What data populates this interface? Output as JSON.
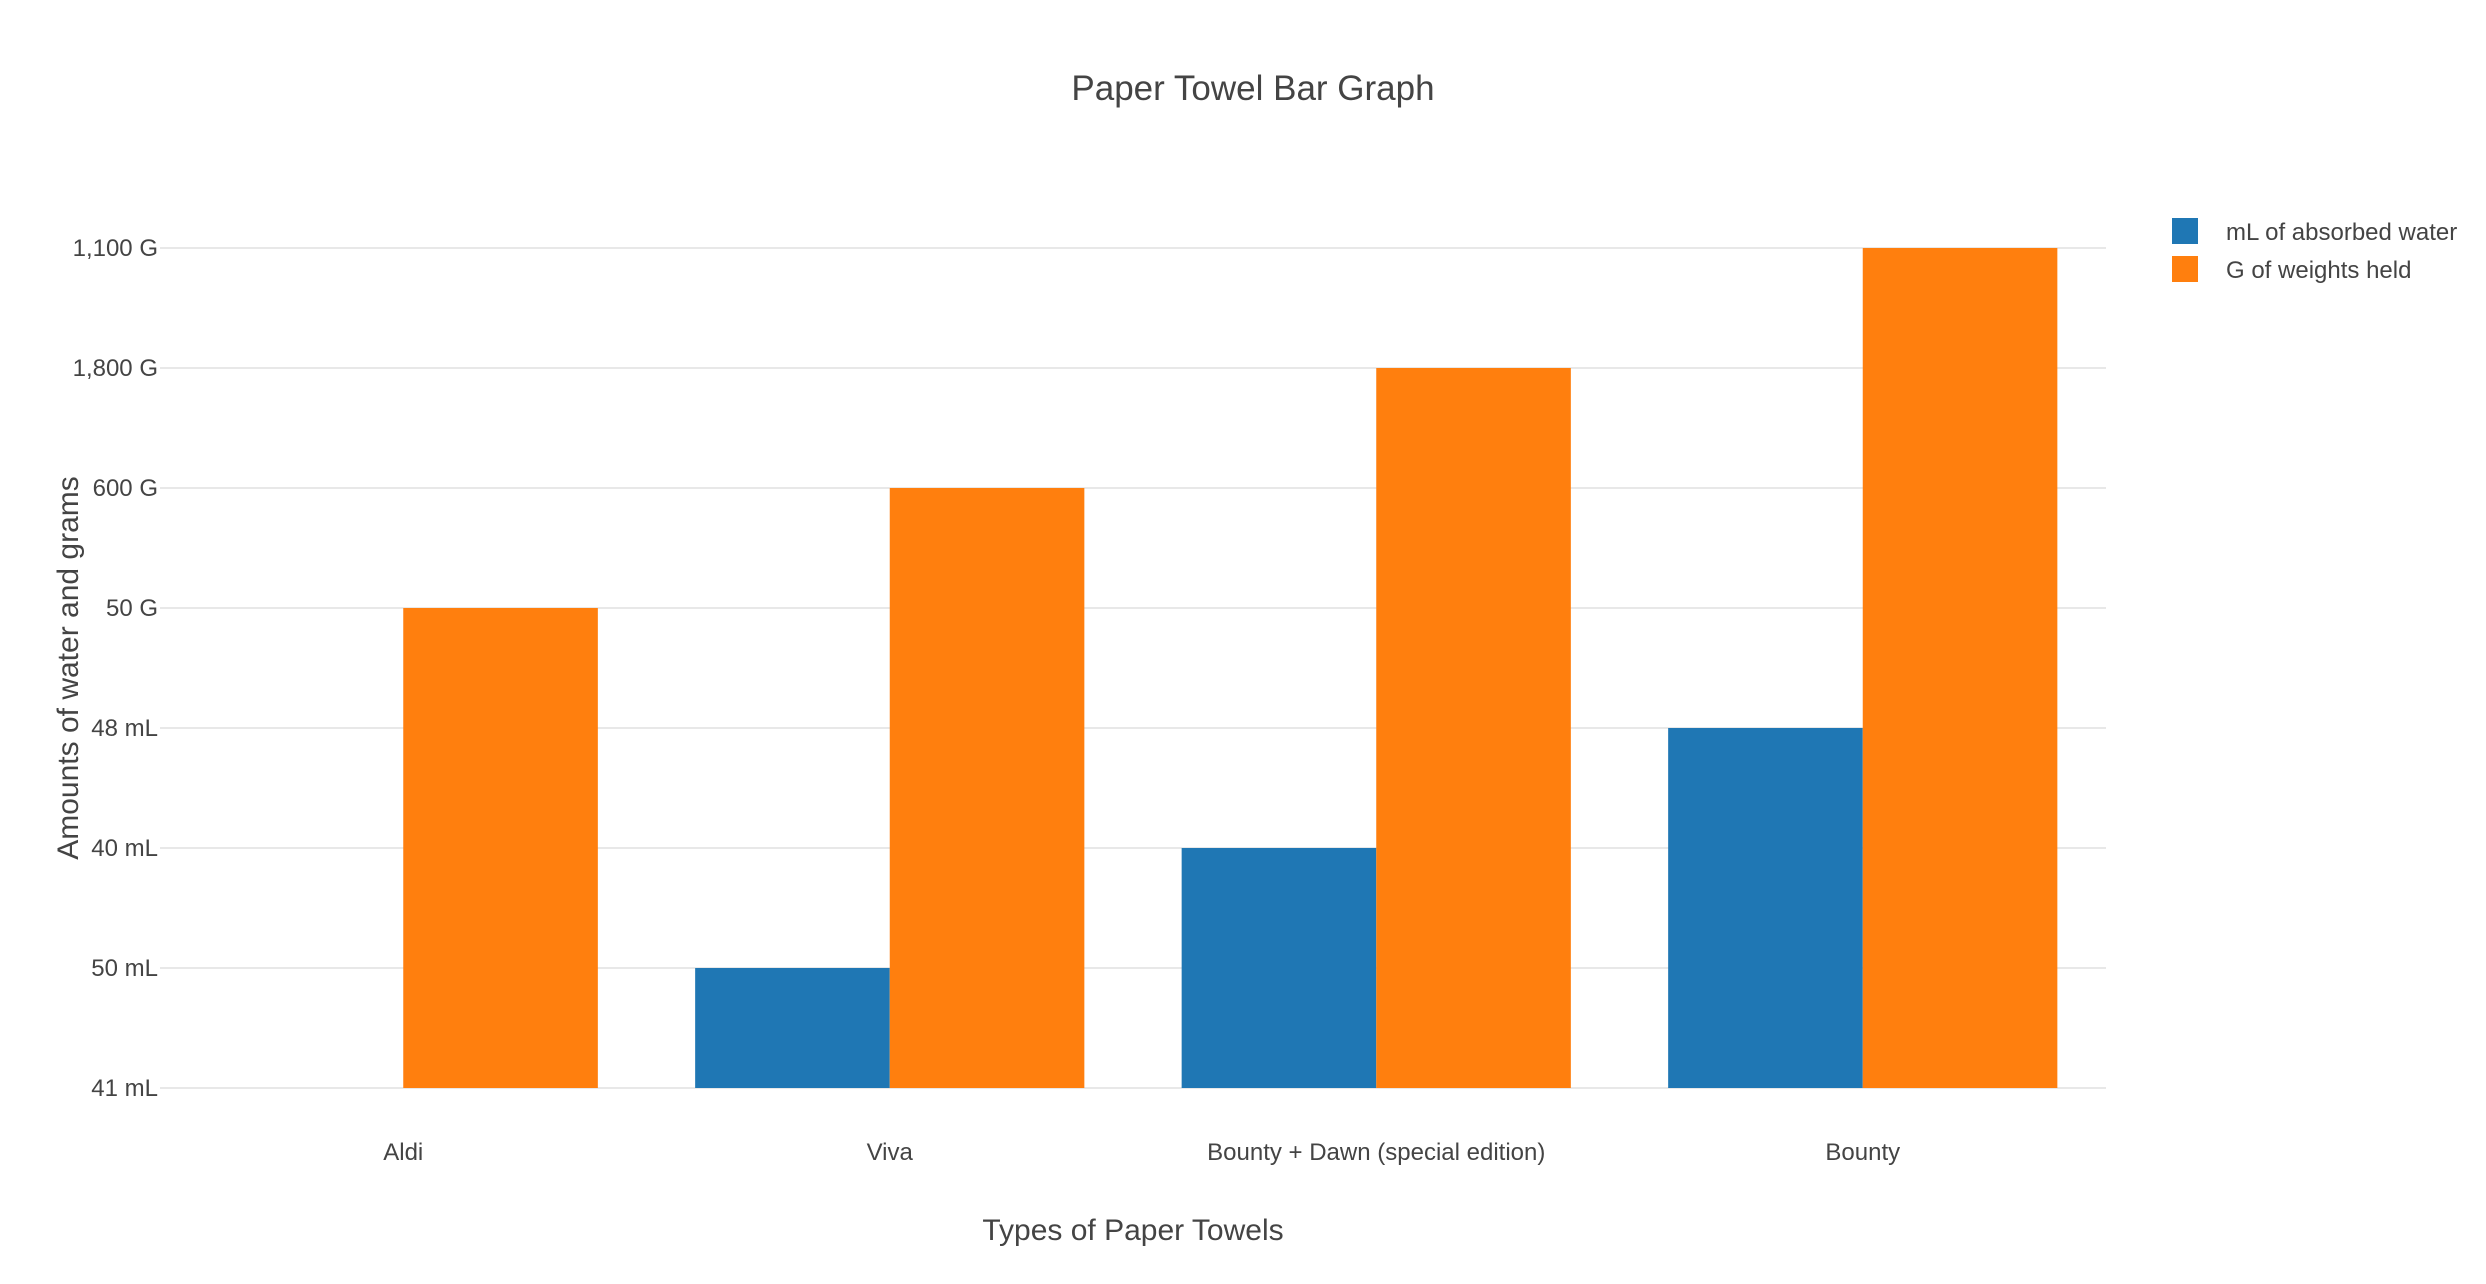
{
  "chart_data": {
    "type": "bar",
    "title": "Paper Towel Bar Graph",
    "xlabel": "Types of Paper Towels",
    "ylabel": "Amounts of water and grams",
    "categories": [
      "Aldi",
      "Viva",
      "Bounty + Dawn (special edition)",
      "Bounty"
    ],
    "y_tick_labels": [
      "41 mL",
      "50 mL",
      "40 mL",
      "48 mL",
      "50 G",
      "600 G",
      "1,800 G",
      "1,100 G"
    ],
    "y_axis_type": "category",
    "series": [
      {
        "name": "mL of absorbed water",
        "color": "#1f77b4",
        "values": [
          "41 mL",
          "50 mL",
          "40 mL",
          "48 mL"
        ]
      },
      {
        "name": "G of weights held",
        "color": "#ff7f0e",
        "values": [
          "50 G",
          "600 G",
          "1,800 G",
          "1,100 G"
        ]
      }
    ],
    "grid": true,
    "legend_position": "top-right"
  }
}
